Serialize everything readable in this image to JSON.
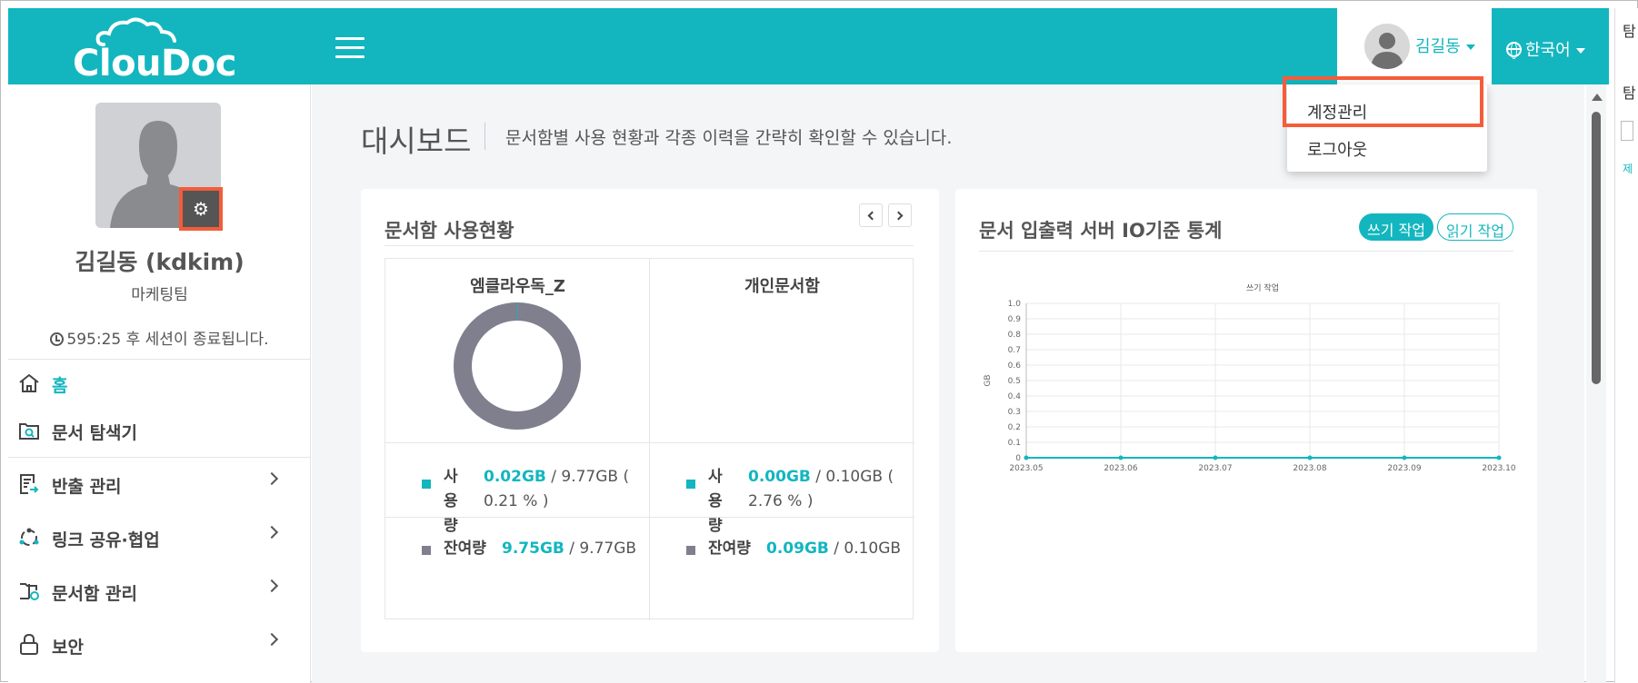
{
  "header": {
    "logo": "ClouDoc",
    "user_name": "김길동",
    "language": "한국어"
  },
  "dropdown": {
    "items": [
      "계정관리",
      "로그아웃"
    ]
  },
  "right_strip": {
    "texts": [
      "탐",
      "제"
    ]
  },
  "sidebar": {
    "profile_name": "김길동 (kdkim)",
    "team": "마케팅팀",
    "session": "595:25 후 세션이 종료됩니다.",
    "menu": [
      {
        "label": "홈",
        "icon": "home-icon",
        "active": true
      },
      {
        "label": "문서 탐색기",
        "icon": "document-search-icon",
        "active": false
      },
      {
        "label": "반출 관리",
        "icon": "export-document-icon",
        "active": false
      },
      {
        "label": "링크 공유·협업",
        "icon": "share-link-icon",
        "active": false
      },
      {
        "label": "문서함 관리",
        "icon": "folder-settings-icon",
        "active": false
      },
      {
        "label": "보안",
        "icon": "lock-icon",
        "active": false
      }
    ]
  },
  "main": {
    "title": "대시보드",
    "description": "문서함별 사용 현황과 각종 이력을 간략히 확인할 수 있습니다."
  },
  "usage_card": {
    "title": "문서함 사용현황",
    "columns": [
      {
        "name": "엠클라우독_Z",
        "used_label": "사용량",
        "used_value": "0.02GB",
        "used_rest": " / 9.77GB (",
        "used_pct": "0.21 % )",
        "remain_label": "잔여량",
        "remain_value": "9.75GB",
        "remain_rest": " / 9.77GB",
        "used_fraction": 0.0021
      },
      {
        "name": "개인문서함",
        "used_label": "사용량",
        "used_value": "0.00GB",
        "used_rest": " / 0.10GB (",
        "used_pct": "2.76 % )",
        "remain_label": "잔여량",
        "remain_value": "0.09GB",
        "remain_rest": " / 0.10GB"
      }
    ]
  },
  "io_card": {
    "title": "문서 입출력 서버 IO기준 통계",
    "tabs": [
      "쓰기 작업",
      "읽기 작업"
    ],
    "active_tab": "쓰기 작업"
  },
  "colors": {
    "accent": "#13b6bf",
    "highlight": "#f45c3a",
    "donut": "#7f7f8e"
  },
  "chart_data": {
    "type": "line",
    "title": "쓰기 작업",
    "xlabel": "",
    "ylabel": "GB",
    "x": [
      "2023.05",
      "2023.06",
      "2023.07",
      "2023.08",
      "2023.09",
      "2023.10"
    ],
    "series": [
      {
        "values": [
          0,
          0,
          0,
          0,
          0,
          0
        ],
        "color": "#13b6bf"
      }
    ],
    "yticks": [
      "0",
      "0.1",
      "0.2",
      "0.3",
      "0.4",
      "0.5",
      "0.6",
      "0.7",
      "0.8",
      "0.9",
      "1.0"
    ],
    "ylim": [
      0,
      1.0
    ],
    "grid": true
  }
}
